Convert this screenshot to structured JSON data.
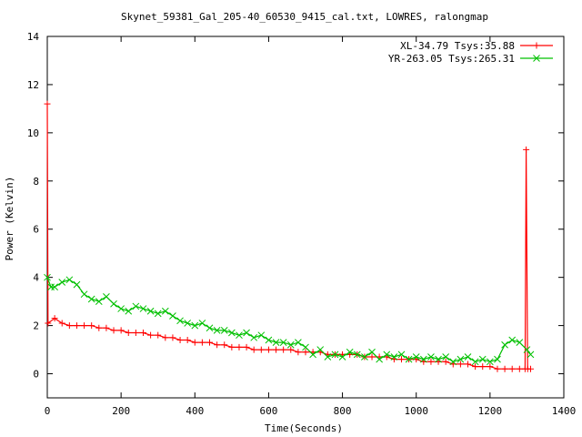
{
  "chart_data": {
    "type": "line",
    "title": "Skynet_59381_Gal_205-40_60530_9415_cal.txt, LOWRES, ralongmap",
    "xlabel": "Time(Seconds)",
    "ylabel": "Power (Kelvin)",
    "xlim": [
      0,
      1400
    ],
    "ylim": [
      -1,
      14
    ],
    "x_ticks": [
      "0",
      "200",
      "400",
      "600",
      "800",
      "1000",
      "1200",
      "1400"
    ],
    "y_ticks": [
      "0",
      "2",
      "4",
      "6",
      "8",
      "10",
      "12",
      "14"
    ],
    "legend_position": "top-right",
    "grid": false,
    "series": [
      {
        "name": "XL-34.79 Tsys:35.88",
        "color": "#ff0000",
        "marker": "plus",
        "points": [
          [
            0,
            11.2
          ],
          [
            2,
            2.1
          ],
          [
            20,
            2.3
          ],
          [
            40,
            2.1
          ],
          [
            60,
            2.0
          ],
          [
            80,
            2.0
          ],
          [
            100,
            2.0
          ],
          [
            120,
            2.0
          ],
          [
            140,
            1.9
          ],
          [
            160,
            1.9
          ],
          [
            180,
            1.8
          ],
          [
            200,
            1.8
          ],
          [
            220,
            1.7
          ],
          [
            240,
            1.7
          ],
          [
            260,
            1.7
          ],
          [
            280,
            1.6
          ],
          [
            300,
            1.6
          ],
          [
            320,
            1.5
          ],
          [
            340,
            1.5
          ],
          [
            360,
            1.4
          ],
          [
            380,
            1.4
          ],
          [
            400,
            1.3
          ],
          [
            420,
            1.3
          ],
          [
            440,
            1.3
          ],
          [
            460,
            1.2
          ],
          [
            480,
            1.2
          ],
          [
            500,
            1.1
          ],
          [
            520,
            1.1
          ],
          [
            540,
            1.1
          ],
          [
            560,
            1.0
          ],
          [
            580,
            1.0
          ],
          [
            600,
            1.0
          ],
          [
            620,
            1.0
          ],
          [
            640,
            1.0
          ],
          [
            660,
            1.0
          ],
          [
            680,
            0.9
          ],
          [
            700,
            0.9
          ],
          [
            720,
            0.9
          ],
          [
            740,
            0.9
          ],
          [
            760,
            0.8
          ],
          [
            780,
            0.8
          ],
          [
            800,
            0.8
          ],
          [
            820,
            0.8
          ],
          [
            840,
            0.8
          ],
          [
            860,
            0.7
          ],
          [
            880,
            0.7
          ],
          [
            900,
            0.7
          ],
          [
            920,
            0.7
          ],
          [
            940,
            0.6
          ],
          [
            960,
            0.6
          ],
          [
            980,
            0.6
          ],
          [
            1000,
            0.6
          ],
          [
            1020,
            0.5
          ],
          [
            1040,
            0.5
          ],
          [
            1060,
            0.5
          ],
          [
            1080,
            0.5
          ],
          [
            1100,
            0.4
          ],
          [
            1120,
            0.4
          ],
          [
            1140,
            0.4
          ],
          [
            1160,
            0.3
          ],
          [
            1180,
            0.3
          ],
          [
            1200,
            0.3
          ],
          [
            1220,
            0.2
          ],
          [
            1240,
            0.2
          ],
          [
            1260,
            0.2
          ],
          [
            1280,
            0.2
          ],
          [
            1295,
            0.2
          ],
          [
            1298,
            9.3
          ],
          [
            1302,
            0.2
          ],
          [
            1310,
            0.2
          ]
        ]
      },
      {
        "name": "YR-263.05 Tsys:265.31",
        "color": "#00c000",
        "marker": "cross",
        "points": [
          [
            0,
            4.0
          ],
          [
            10,
            3.6
          ],
          [
            20,
            3.6
          ],
          [
            40,
            3.8
          ],
          [
            60,
            3.9
          ],
          [
            80,
            3.7
          ],
          [
            100,
            3.3
          ],
          [
            120,
            3.1
          ],
          [
            140,
            3.0
          ],
          [
            160,
            3.2
          ],
          [
            180,
            2.9
          ],
          [
            200,
            2.7
          ],
          [
            220,
            2.6
          ],
          [
            240,
            2.8
          ],
          [
            260,
            2.7
          ],
          [
            280,
            2.6
          ],
          [
            300,
            2.5
          ],
          [
            320,
            2.6
          ],
          [
            340,
            2.4
          ],
          [
            360,
            2.2
          ],
          [
            380,
            2.1
          ],
          [
            400,
            2.0
          ],
          [
            420,
            2.1
          ],
          [
            440,
            1.9
          ],
          [
            460,
            1.8
          ],
          [
            480,
            1.8
          ],
          [
            500,
            1.7
          ],
          [
            520,
            1.6
          ],
          [
            540,
            1.7
          ],
          [
            560,
            1.5
          ],
          [
            580,
            1.6
          ],
          [
            600,
            1.4
          ],
          [
            620,
            1.3
          ],
          [
            640,
            1.3
          ],
          [
            660,
            1.2
          ],
          [
            680,
            1.3
          ],
          [
            700,
            1.1
          ],
          [
            720,
            0.8
          ],
          [
            740,
            1.0
          ],
          [
            760,
            0.7
          ],
          [
            780,
            0.8
          ],
          [
            800,
            0.7
          ],
          [
            820,
            0.9
          ],
          [
            840,
            0.8
          ],
          [
            860,
            0.7
          ],
          [
            880,
            0.9
          ],
          [
            900,
            0.6
          ],
          [
            920,
            0.8
          ],
          [
            940,
            0.7
          ],
          [
            960,
            0.8
          ],
          [
            980,
            0.6
          ],
          [
            1000,
            0.7
          ],
          [
            1020,
            0.6
          ],
          [
            1040,
            0.7
          ],
          [
            1060,
            0.6
          ],
          [
            1080,
            0.7
          ],
          [
            1100,
            0.5
          ],
          [
            1120,
            0.6
          ],
          [
            1140,
            0.7
          ],
          [
            1160,
            0.5
          ],
          [
            1180,
            0.6
          ],
          [
            1200,
            0.5
          ],
          [
            1220,
            0.6
          ],
          [
            1240,
            1.2
          ],
          [
            1260,
            1.4
          ],
          [
            1280,
            1.3
          ],
          [
            1300,
            1.0
          ],
          [
            1310,
            0.8
          ]
        ]
      }
    ]
  }
}
